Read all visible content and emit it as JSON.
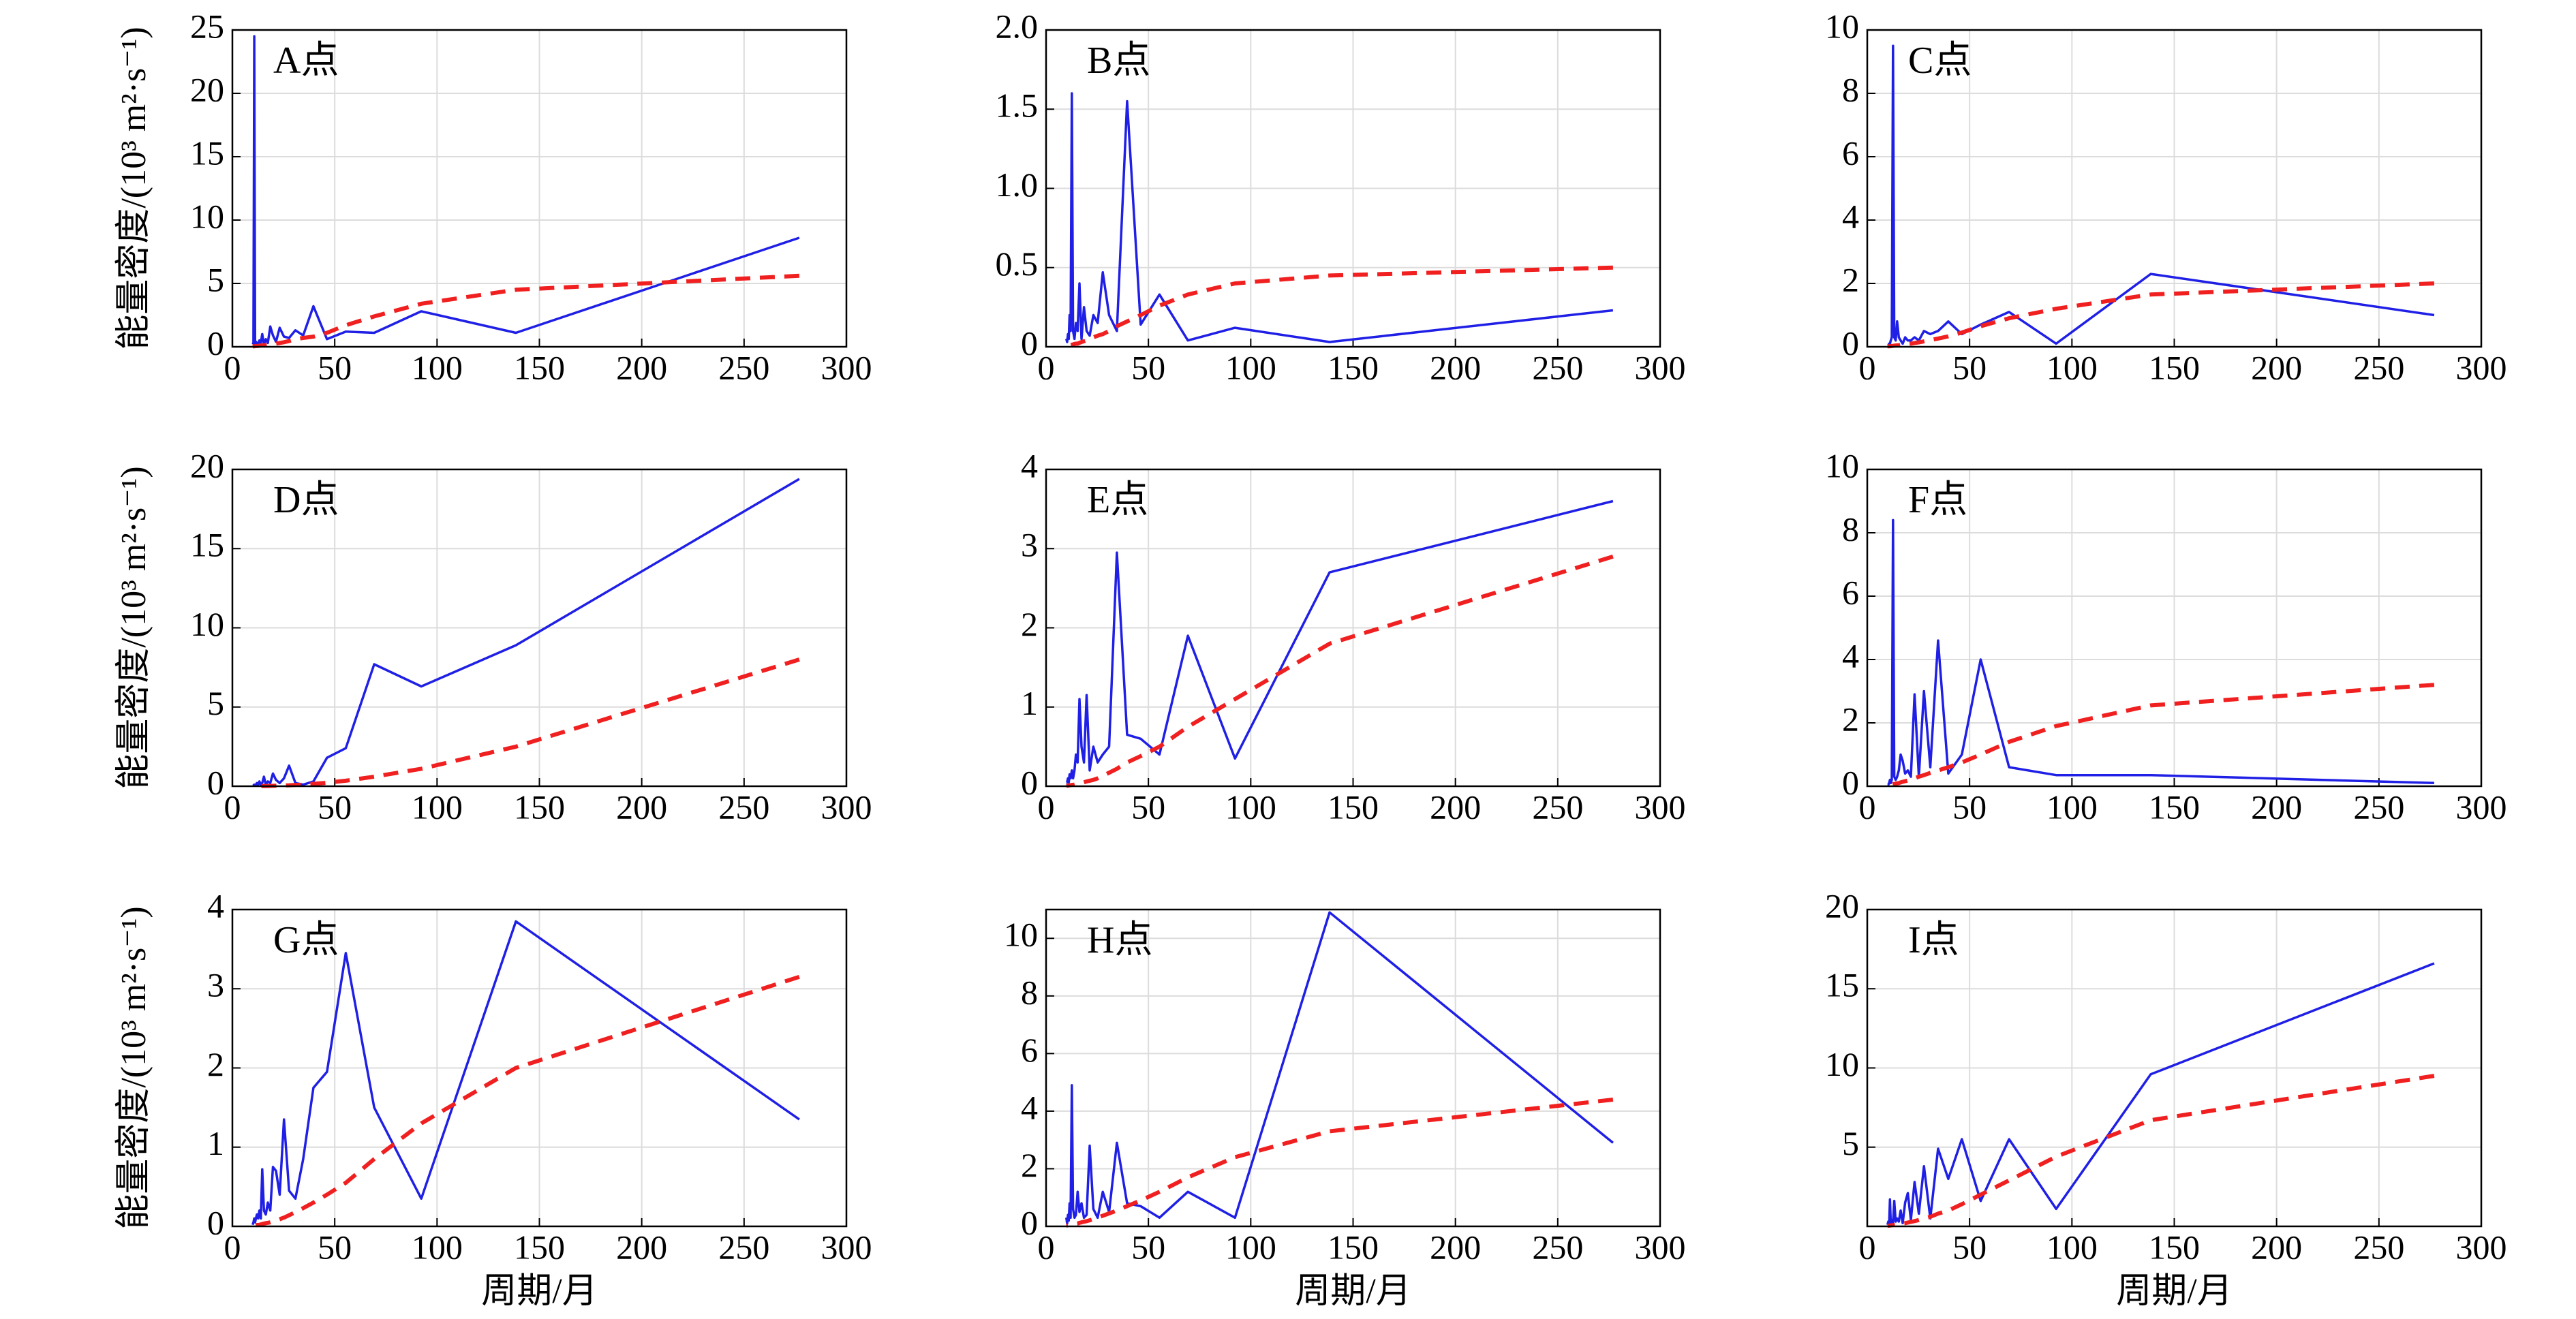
{
  "chart_data": [
    {
      "type": "line",
      "title": "A点",
      "ylabel": "能量密度/(10³ m²·s⁻¹)",
      "x": [
        277,
        138.5,
        92.3,
        69.3,
        55.4,
        46.2,
        39.6,
        34.6,
        30.8,
        27.7,
        25.2,
        23.1,
        21.3,
        19.8,
        18.5,
        17.3,
        16.3,
        15.4,
        14.6,
        13.9,
        13.2,
        12.6,
        12.0,
        11.5,
        11.1,
        10.7,
        10.3,
        9.9
      ],
      "series": [
        {
          "color": "#1f1fe6",
          "style": "solid",
          "values": [
            8.6,
            1.1,
            2.8,
            1.1,
            1.2,
            0.6,
            3.2,
            0.9,
            1.3,
            0.7,
            0.8,
            1.5,
            0.4,
            0.9,
            1.6,
            0.3,
            0.6,
            0.2,
            1.0,
            0.3,
            0.5,
            0.2,
            0.3,
            0.4,
            0.2,
            24.5,
            0.3,
            0.2
          ]
        },
        {
          "color": "#f02020",
          "style": "dashed",
          "values": [
            5.6,
            4.5,
            3.4,
            2.4,
            1.7,
            1.1,
            0.8,
            0.7,
            0.6,
            0.45,
            0.36,
            0.3,
            0.25,
            0.22,
            0.2,
            0.17,
            0.14,
            0.12,
            0.11,
            0.1,
            0.08,
            0.07,
            0.06,
            0.06,
            0.05,
            0.04,
            0.04,
            0.03
          ]
        }
      ],
      "xlim": [
        0,
        300
      ],
      "xticks": [
        0,
        50,
        100,
        150,
        200,
        250,
        300
      ],
      "ylim": [
        0,
        25
      ],
      "yticks": [
        0,
        5,
        10,
        15,
        20,
        25
      ],
      "grid": true
    },
    {
      "type": "line",
      "title": "B点",
      "x": [
        277,
        138.5,
        92.3,
        69.3,
        55.4,
        46.2,
        39.6,
        34.6,
        30.8,
        27.7,
        25.2,
        23.1,
        21.3,
        19.8,
        18.5,
        17.3,
        16.3,
        15.4,
        14.6,
        13.9,
        13.2,
        12.6,
        12.0,
        11.5,
        11.1,
        10.7,
        10.3,
        9.9
      ],
      "series": [
        {
          "color": "#1f1fe6",
          "style": "solid",
          "values": [
            0.23,
            0.03,
            0.12,
            0.04,
            0.33,
            0.14,
            1.55,
            0.1,
            0.2,
            0.47,
            0.15,
            0.2,
            0.07,
            0.1,
            0.25,
            0.05,
            0.4,
            0.1,
            0.15,
            0.05,
            0.1,
            1.6,
            0.1,
            0.2,
            0.05,
            0.08,
            0.03,
            0.05
          ]
        },
        {
          "color": "#f02020",
          "style": "dashed",
          "values": [
            0.5,
            0.45,
            0.4,
            0.33,
            0.26,
            0.2,
            0.16,
            0.13,
            0.1,
            0.08,
            0.07,
            0.06,
            0.05,
            0.04,
            0.035,
            0.03,
            0.025,
            0.02,
            0.02,
            0.018,
            0.015,
            0.013,
            0.011,
            0.01,
            0.009,
            0.008,
            0.007,
            0.006
          ]
        }
      ],
      "xlim": [
        0,
        300
      ],
      "xticks": [
        0,
        50,
        100,
        150,
        200,
        250,
        300
      ],
      "ylim": [
        0,
        2
      ],
      "yticks": [
        0,
        0.5,
        {
          "value": 1,
          "label": "1.0"
        },
        1.5,
        {
          "value": 2,
          "label": "2.0"
        }
      ],
      "grid": true
    },
    {
      "type": "line",
      "title": "C点",
      "x": [
        277,
        138.5,
        92.3,
        69.3,
        55.4,
        46.2,
        39.6,
        34.6,
        30.8,
        27.7,
        25.2,
        23.1,
        21.3,
        19.8,
        18.5,
        17.3,
        16.3,
        15.4,
        14.6,
        13.9,
        13.2,
        12.6,
        12.0,
        11.5,
        11.1,
        10.7,
        10.3,
        9.9
      ],
      "series": [
        {
          "color": "#1f1fe6",
          "style": "solid",
          "values": [
            1.0,
            2.3,
            0.1,
            1.1,
            0.7,
            0.4,
            0.8,
            0.5,
            0.4,
            0.5,
            0.2,
            0.3,
            0.2,
            0.2,
            0.3,
            0.1,
            0.2,
            0.3,
            0.8,
            0.2,
            0.3,
            9.5,
            0.3,
            0.2,
            0.1,
            0.1,
            0.05,
            0.05
          ]
        },
        {
          "color": "#f02020",
          "style": "dashed",
          "values": [
            2.0,
            1.65,
            1.2,
            0.9,
            0.65,
            0.45,
            0.33,
            0.26,
            0.21,
            0.17,
            0.14,
            0.12,
            0.1,
            0.09,
            0.08,
            0.07,
            0.06,
            0.05,
            0.045,
            0.04,
            0.035,
            0.03,
            0.025,
            0.02,
            0.02,
            0.018,
            0.016,
            0.014
          ]
        }
      ],
      "xlim": [
        0,
        300
      ],
      "xticks": [
        0,
        50,
        100,
        150,
        200,
        250,
        300
      ],
      "ylim": [
        0,
        10
      ],
      "yticks": [
        0,
        2,
        4,
        6,
        8,
        10
      ],
      "grid": true
    },
    {
      "type": "line",
      "title": "D点",
      "ylabel": "能量密度/(10³ m²·s⁻¹)",
      "x": [
        277,
        138.5,
        92.3,
        69.3,
        55.4,
        46.2,
        39.6,
        34.6,
        30.8,
        27.7,
        25.2,
        23.1,
        21.3,
        19.8,
        18.5,
        17.3,
        16.3,
        15.4,
        14.6,
        13.9,
        13.2,
        12.6,
        12.0,
        11.5,
        11.1,
        10.7,
        10.3,
        9.9
      ],
      "series": [
        {
          "color": "#1f1fe6",
          "style": "solid",
          "values": [
            19.4,
            8.9,
            6.3,
            7.7,
            2.4,
            1.8,
            0.3,
            0.1,
            0.2,
            1.3,
            0.5,
            0.2,
            0.4,
            0.8,
            0.2,
            0.3,
            0.1,
            0.6,
            0.2,
            0.1,
            0.3,
            0.1,
            0.2,
            0.1,
            0.05,
            0.1,
            0.05,
            0.05
          ]
        },
        {
          "color": "#f02020",
          "style": "dashed",
          "values": [
            8.0,
            2.5,
            1.1,
            0.6,
            0.35,
            0.22,
            0.15,
            0.1,
            0.08,
            0.06,
            0.05,
            0.04,
            0.03,
            0.025,
            0.02,
            0.018,
            0.015,
            0.012,
            0.01,
            0.009,
            0.008,
            0.007,
            0.006,
            0.005,
            0.005,
            0.004,
            0.004,
            0.003
          ]
        }
      ],
      "xlim": [
        0,
        300
      ],
      "xticks": [
        0,
        50,
        100,
        150,
        200,
        250,
        300
      ],
      "ylim": [
        0,
        20
      ],
      "yticks": [
        0,
        5,
        10,
        15,
        20
      ],
      "grid": true
    },
    {
      "type": "line",
      "title": "E点",
      "x": [
        277,
        138.5,
        92.3,
        69.3,
        55.4,
        46.2,
        39.6,
        34.6,
        30.8,
        27.7,
        25.2,
        23.1,
        21.3,
        19.8,
        18.5,
        17.3,
        16.3,
        15.4,
        14.6,
        13.9,
        13.2,
        12.6,
        12.0,
        11.5,
        11.1,
        10.7,
        10.3,
        9.9
      ],
      "series": [
        {
          "color": "#1f1fe6",
          "style": "solid",
          "values": [
            3.6,
            2.7,
            0.35,
            1.9,
            0.4,
            0.6,
            0.65,
            2.95,
            0.5,
            0.4,
            0.3,
            0.5,
            0.2,
            1.15,
            0.3,
            0.5,
            1.1,
            0.3,
            0.4,
            0.2,
            0.1,
            0.2,
            0.1,
            0.15,
            0.05,
            0.1,
            0.05,
            0.05
          ]
        },
        {
          "color": "#f02020",
          "style": "dashed",
          "values": [
            2.9,
            1.8,
            1.1,
            0.75,
            0.5,
            0.38,
            0.3,
            0.22,
            0.17,
            0.13,
            0.1,
            0.08,
            0.07,
            0.06,
            0.05,
            0.04,
            0.035,
            0.03,
            0.025,
            0.02,
            0.018,
            0.016,
            0.014,
            0.012,
            0.01,
            0.009,
            0.008,
            0.007
          ]
        }
      ],
      "xlim": [
        0,
        300
      ],
      "xticks": [
        0,
        50,
        100,
        150,
        200,
        250,
        300
      ],
      "ylim": [
        0,
        4
      ],
      "yticks": [
        0,
        1,
        2,
        3,
        4
      ],
      "grid": true
    },
    {
      "type": "line",
      "title": "F点",
      "x": [
        277,
        138.5,
        92.3,
        69.3,
        55.4,
        46.2,
        39.6,
        34.6,
        30.8,
        27.7,
        25.2,
        23.1,
        21.3,
        19.8,
        18.5,
        17.3,
        16.3,
        15.4,
        14.6,
        13.9,
        13.2,
        12.6,
        12.0,
        11.5,
        11.1,
        10.7,
        10.3,
        9.9
      ],
      "series": [
        {
          "color": "#1f1fe6",
          "style": "solid",
          "values": [
            0.1,
            0.35,
            0.35,
            0.6,
            4.0,
            1.0,
            0.4,
            4.6,
            0.6,
            3.0,
            0.3,
            2.9,
            0.3,
            0.5,
            0.4,
            0.8,
            1.0,
            0.5,
            0.3,
            0.2,
            0.3,
            8.4,
            0.2,
            0.1,
            0.2,
            0.1,
            0.05,
            0.05
          ]
        },
        {
          "color": "#f02020",
          "style": "dashed",
          "values": [
            3.2,
            2.55,
            1.9,
            1.4,
            1.0,
            0.75,
            0.6,
            0.5,
            0.42,
            0.35,
            0.3,
            0.25,
            0.21,
            0.18,
            0.16,
            0.14,
            0.12,
            0.1,
            0.09,
            0.08,
            0.07,
            0.06,
            0.05,
            0.045,
            0.04,
            0.035,
            0.03,
            0.025
          ]
        }
      ],
      "xlim": [
        0,
        300
      ],
      "xticks": [
        0,
        50,
        100,
        150,
        200,
        250,
        300
      ],
      "ylim": [
        0,
        10
      ],
      "yticks": [
        0,
        2,
        4,
        6,
        8,
        10
      ],
      "grid": true
    },
    {
      "type": "line",
      "title": "G点",
      "ylabel": "能量密度/(10³ m²·s⁻¹)",
      "xlabel": "周期/月",
      "x": [
        277,
        138.5,
        92.3,
        69.3,
        55.4,
        46.2,
        39.6,
        34.6,
        30.8,
        27.7,
        25.2,
        23.1,
        21.3,
        19.8,
        18.5,
        17.3,
        16.3,
        15.4,
        14.6,
        13.9,
        13.2,
        12.6,
        12.0,
        11.5,
        11.1,
        10.7,
        10.3,
        9.9
      ],
      "series": [
        {
          "color": "#1f1fe6",
          "style": "solid",
          "values": [
            1.35,
            3.85,
            0.35,
            1.5,
            3.45,
            1.95,
            1.75,
            0.85,
            0.35,
            0.45,
            1.35,
            0.4,
            0.7,
            0.75,
            0.2,
            0.3,
            0.15,
            0.2,
            0.72,
            0.1,
            0.2,
            0.1,
            0.15,
            0.1,
            0.05,
            0.1,
            0.05,
            0.02
          ]
        },
        {
          "color": "#f02020",
          "style": "dashed",
          "values": [
            3.15,
            2.0,
            1.3,
            0.85,
            0.55,
            0.4,
            0.3,
            0.23,
            0.18,
            0.14,
            0.11,
            0.09,
            0.075,
            0.06,
            0.05,
            0.045,
            0.04,
            0.035,
            0.03,
            0.025,
            0.02,
            0.018,
            0.016,
            0.014,
            0.012,
            0.01,
            0.009,
            0.008
          ]
        }
      ],
      "xlim": [
        0,
        300
      ],
      "xticks": [
        0,
        50,
        100,
        150,
        200,
        250,
        300
      ],
      "ylim": [
        0,
        4
      ],
      "yticks": [
        0,
        1,
        2,
        3,
        4
      ],
      "grid": true
    },
    {
      "type": "line",
      "title": "H点",
      "xlabel": "周期/月",
      "x": [
        277,
        138.5,
        92.3,
        69.3,
        55.4,
        46.2,
        39.6,
        34.6,
        30.8,
        27.7,
        25.2,
        23.1,
        21.3,
        19.8,
        18.5,
        17.3,
        16.3,
        15.4,
        14.6,
        13.9,
        13.2,
        12.6,
        12.0,
        11.5,
        11.1,
        10.7,
        10.3,
        9.9
      ],
      "series": [
        {
          "color": "#1f1fe6",
          "style": "solid",
          "values": [
            2.9,
            10.9,
            0.3,
            1.2,
            0.3,
            0.7,
            0.8,
            2.9,
            0.5,
            1.2,
            0.3,
            0.6,
            2.8,
            0.4,
            0.3,
            0.8,
            0.5,
            1.2,
            0.4,
            0.3,
            0.6,
            4.9,
            0.3,
            0.8,
            0.2,
            0.4,
            0.1,
            0.3
          ]
        },
        {
          "color": "#f02020",
          "style": "dashed",
          "values": [
            4.4,
            3.3,
            2.4,
            1.7,
            1.2,
            0.9,
            0.7,
            0.55,
            0.45,
            0.37,
            0.3,
            0.25,
            0.21,
            0.18,
            0.16,
            0.14,
            0.12,
            0.1,
            0.09,
            0.08,
            0.07,
            0.06,
            0.05,
            0.045,
            0.04,
            0.035,
            0.03,
            0.025
          ]
        }
      ],
      "xlim": [
        0,
        300
      ],
      "xticks": [
        0,
        50,
        100,
        150,
        200,
        250,
        300
      ],
      "ylim": [
        0,
        11
      ],
      "yticks": [
        0,
        2,
        4,
        6,
        8,
        10
      ],
      "grid": true
    },
    {
      "type": "line",
      "title": "I点",
      "xlabel": "周期/月",
      "x": [
        277,
        138.5,
        92.3,
        69.3,
        55.4,
        46.2,
        39.6,
        34.6,
        30.8,
        27.7,
        25.2,
        23.1,
        21.3,
        19.8,
        18.5,
        17.3,
        16.3,
        15.4,
        14.6,
        13.9,
        13.2,
        12.6,
        12.0,
        11.5,
        11.1,
        10.7,
        10.3,
        9.9
      ],
      "series": [
        {
          "color": "#1f1fe6",
          "style": "solid",
          "values": [
            16.6,
            9.6,
            1.1,
            5.5,
            1.6,
            5.5,
            3.0,
            4.9,
            0.5,
            3.8,
            0.8,
            2.8,
            0.4,
            2.1,
            1.5,
            0.2,
            1.0,
            0.3,
            0.5,
            0.3,
            1.6,
            0.2,
            0.4,
            0.2,
            1.7,
            0.1,
            0.3,
            0.1
          ]
        },
        {
          "color": "#f02020",
          "style": "dashed",
          "values": [
            9.5,
            6.7,
            4.4,
            2.9,
            2.0,
            1.4,
            1.0,
            0.8,
            0.6,
            0.5,
            0.4,
            0.33,
            0.28,
            0.24,
            0.2,
            0.18,
            0.15,
            0.13,
            0.12,
            0.1,
            0.09,
            0.08,
            0.07,
            0.06,
            0.05,
            0.045,
            0.04,
            0.035
          ]
        }
      ],
      "xlim": [
        0,
        300
      ],
      "xticks": [
        0,
        50,
        100,
        150,
        200,
        250,
        300
      ],
      "ylim": [
        0,
        20
      ],
      "yticks": [
        5,
        10,
        15,
        20
      ],
      "grid": true
    }
  ]
}
